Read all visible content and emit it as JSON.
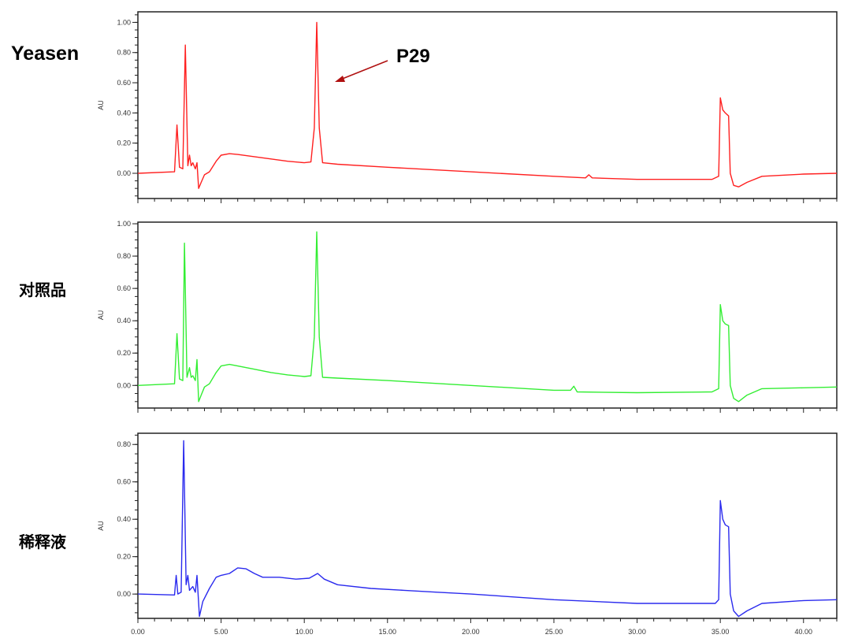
{
  "chart_data": [
    {
      "type": "line",
      "name": "Yeasen",
      "label": "Yeasen",
      "color": "#ff2020",
      "ylabel": "AU",
      "ylim": [
        -0.167,
        1.07
      ],
      "xlim": [
        0,
        42
      ],
      "yticks": [
        "0.00",
        "0.20",
        "0.40",
        "0.60",
        "0.80",
        "1.00"
      ],
      "annotation": {
        "text": "P29",
        "x": 10.75,
        "y": 1.0
      },
      "x": [
        0,
        2.2,
        2.35,
        2.5,
        2.7,
        2.85,
        3.0,
        3.1,
        3.2,
        3.3,
        3.45,
        3.55,
        3.65,
        3.8,
        4.0,
        4.3,
        4.7,
        5.0,
        5.5,
        6,
        7,
        8,
        9,
        10,
        10.4,
        10.6,
        10.75,
        10.9,
        11.1,
        12,
        15,
        20,
        25,
        26.9,
        27.1,
        27.3,
        30,
        34.5,
        34.9,
        35.0,
        35.15,
        35.3,
        35.5,
        35.6,
        35.8,
        36.1,
        36.6,
        37.5,
        40,
        42
      ],
      "y": [
        0,
        0.01,
        0.32,
        0.04,
        0.03,
        0.85,
        0.05,
        0.12,
        0.05,
        0.07,
        0.03,
        0.07,
        -0.1,
        -0.06,
        -0.01,
        0.01,
        0.08,
        0.12,
        0.13,
        0.125,
        0.11,
        0.095,
        0.08,
        0.07,
        0.075,
        0.3,
        1.0,
        0.3,
        0.07,
        0.06,
        0.04,
        0.01,
        -0.02,
        -0.03,
        -0.01,
        -0.03,
        -0.04,
        -0.04,
        -0.02,
        0.5,
        0.42,
        0.4,
        0.38,
        0.0,
        -0.08,
        -0.09,
        -0.06,
        -0.02,
        -0.005,
        0.0
      ]
    },
    {
      "type": "line",
      "name": "reference",
      "label": "对照品",
      "color": "#33ee33",
      "ylabel": "AU",
      "ylim": [
        -0.14,
        1.01
      ],
      "xlim": [
        0,
        42
      ],
      "yticks": [
        "0.00",
        "0.20",
        "0.40",
        "0.60",
        "0.80",
        "1.00"
      ],
      "x": [
        0,
        2.2,
        2.35,
        2.5,
        2.7,
        2.8,
        2.95,
        3.1,
        3.2,
        3.3,
        3.45,
        3.55,
        3.65,
        3.8,
        4.0,
        4.3,
        4.7,
        5.0,
        5.5,
        6,
        7,
        8,
        9,
        10,
        10.4,
        10.6,
        10.75,
        10.9,
        11.1,
        12,
        15,
        20,
        25,
        26.0,
        26.2,
        26.4,
        30,
        34.5,
        34.9,
        35.0,
        35.15,
        35.3,
        35.5,
        35.6,
        35.8,
        36.1,
        36.6,
        37.5,
        40,
        42
      ],
      "y": [
        0,
        0.01,
        0.32,
        0.04,
        0.03,
        0.88,
        0.05,
        0.11,
        0.05,
        0.06,
        0.03,
        0.16,
        -0.1,
        -0.06,
        -0.01,
        0.01,
        0.08,
        0.12,
        0.13,
        0.12,
        0.1,
        0.08,
        0.065,
        0.055,
        0.06,
        0.3,
        0.95,
        0.3,
        0.05,
        0.045,
        0.03,
        0.0,
        -0.03,
        -0.03,
        -0.005,
        -0.04,
        -0.045,
        -0.04,
        -0.02,
        0.5,
        0.4,
        0.38,
        0.37,
        0.0,
        -0.08,
        -0.1,
        -0.06,
        -0.02,
        -0.015,
        -0.01
      ]
    },
    {
      "type": "line",
      "name": "diluent",
      "label": "稀释液",
      "color": "#2a2aee",
      "ylabel": "AU",
      "xlabel": "",
      "ylim": [
        -0.13,
        0.86
      ],
      "xlim": [
        0,
        42
      ],
      "yticks": [
        "0.00",
        "0.20",
        "0.40",
        "0.60",
        "0.80"
      ],
      "xticks": [
        "0.00",
        "5.00",
        "10.00",
        "15.00",
        "20.00",
        "25.00",
        "30.00",
        "35.00",
        "40.00"
      ],
      "x": [
        0,
        2.2,
        2.3,
        2.4,
        2.6,
        2.75,
        2.9,
        3.0,
        3.1,
        3.3,
        3.45,
        3.55,
        3.7,
        3.9,
        4.3,
        4.7,
        5.0,
        5.5,
        6,
        6.5,
        7,
        7.5,
        8.5,
        9.5,
        10.3,
        10.8,
        11.2,
        12,
        14,
        16,
        18,
        20,
        25,
        30,
        34.7,
        34.9,
        35.0,
        35.15,
        35.3,
        35.5,
        35.6,
        35.8,
        36.1,
        36.6,
        37.5,
        40,
        42
      ],
      "y": [
        0,
        -0.005,
        0.1,
        0.0,
        0.01,
        0.82,
        0.05,
        0.1,
        0.02,
        0.04,
        0.01,
        0.1,
        -0.12,
        -0.04,
        0.03,
        0.09,
        0.1,
        0.11,
        0.14,
        0.135,
        0.11,
        0.09,
        0.09,
        0.08,
        0.085,
        0.11,
        0.08,
        0.05,
        0.03,
        0.02,
        0.01,
        0.0,
        -0.03,
        -0.05,
        -0.05,
        -0.03,
        0.5,
        0.4,
        0.37,
        0.36,
        0.0,
        -0.09,
        -0.12,
        -0.09,
        -0.05,
        -0.035,
        -0.03
      ]
    }
  ]
}
